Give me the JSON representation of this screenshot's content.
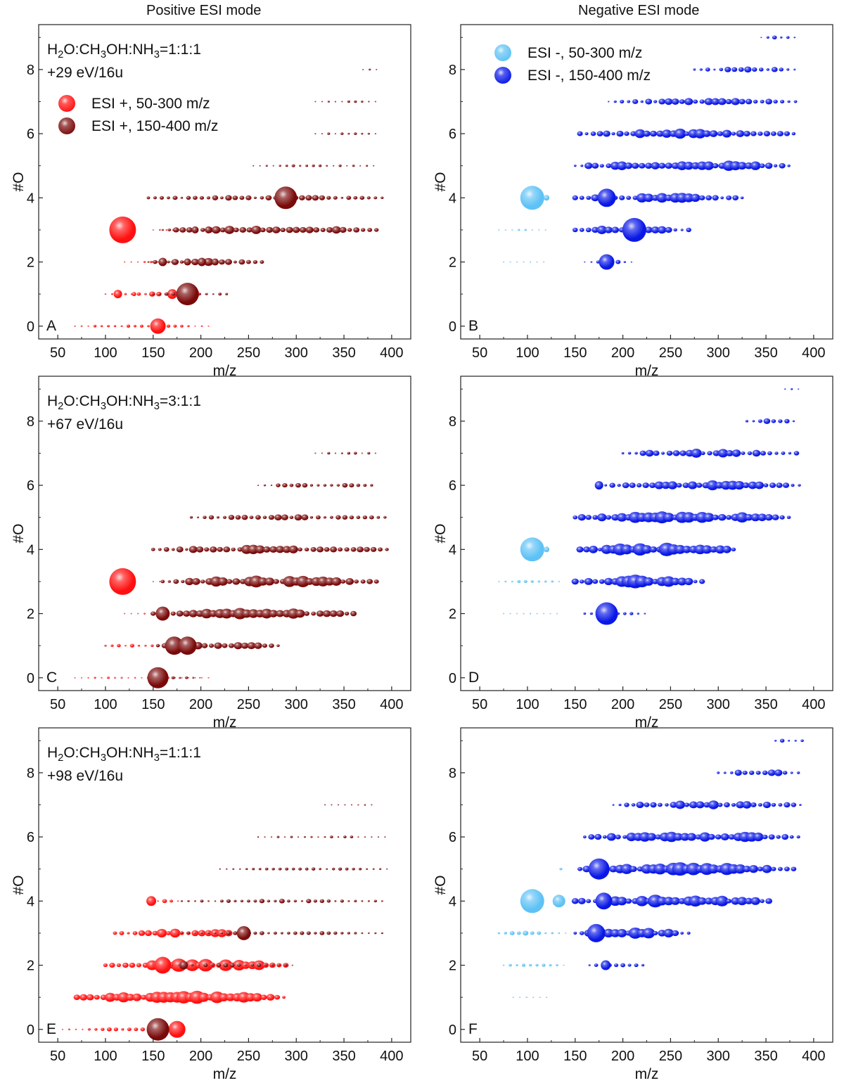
{
  "page": {
    "column_titles": [
      "Positive ESI mode",
      "Negative ESI mode"
    ]
  },
  "colors": {
    "esi_plus_low": "#ff1010",
    "esi_plus_high": "#7a0a0a",
    "esi_minus_low": "#5ec2f5",
    "esi_minus_high": "#0a18e6"
  },
  "chart_data": [
    {
      "panel": "A",
      "type": "scatter",
      "xlabel": "m/z",
      "ylabel": "#O",
      "xlim": [
        30,
        420
      ],
      "ylim": [
        -0.4,
        9.4
      ],
      "xticks": [
        50,
        100,
        150,
        200,
        250,
        300,
        350,
        400
      ],
      "yticks": [
        0,
        2,
        4,
        6,
        8
      ],
      "annotation": {
        "lines": [
          "H2O:CH3OH:NH3=1:1:1",
          "+29 eV/16u"
        ]
      },
      "legend": [
        {
          "label": "ESI +, 50-300 m/z",
          "color": "esi_plus_low"
        },
        {
          "label": "ESI +, 150-400 m/z",
          "color": "esi_plus_high"
        }
      ],
      "series": [
        {
          "name": "ESI +, 50-300 m/z",
          "color": "esi_plus_low",
          "bands": [
            {
              "o": 0,
              "start": 68,
              "end": 210,
              "step": 7,
              "base": 0.7
            },
            {
              "o": 1,
              "start": 100,
              "end": 210,
              "step": 7,
              "base": 1.0
            },
            {
              "o": 2,
              "start": 120,
              "end": 220,
              "step": 7,
              "base": 0.5
            },
            {
              "o": 3,
              "start": 150,
              "end": 180,
              "step": 7,
              "base": 0.5
            }
          ],
          "peaks": [
            {
              "x": 155,
              "y": 0,
              "r": 11
            },
            {
              "x": 113,
              "y": 1,
              "r": 6
            },
            {
              "x": 170,
              "y": 1,
              "r": 7
            },
            {
              "x": 190,
              "y": 1,
              "r": 11
            },
            {
              "x": 118,
              "y": 3,
              "r": 19
            },
            {
              "x": 130,
              "y": 1,
              "r": 3
            }
          ]
        },
        {
          "name": "ESI +, 150-400 m/z",
          "color": "esi_plus_high",
          "bands": [
            {
              "o": 1,
              "start": 150,
              "end": 230,
              "step": 7,
              "base": 1.0
            },
            {
              "o": 2,
              "start": 145,
              "end": 270,
              "step": 7,
              "base": 1.6
            },
            {
              "o": 3,
              "start": 160,
              "end": 390,
              "step": 7,
              "base": 1.8
            },
            {
              "o": 4,
              "start": 145,
              "end": 395,
              "step": 7,
              "base": 1.2
            },
            {
              "o": 5,
              "start": 255,
              "end": 385,
              "step": 7,
              "base": 0.6
            },
            {
              "o": 6,
              "start": 320,
              "end": 385,
              "step": 7,
              "base": 0.6
            },
            {
              "o": 7,
              "start": 320,
              "end": 385,
              "step": 7,
              "base": 0.5
            },
            {
              "o": 8,
              "start": 370,
              "end": 385,
              "step": 7,
              "base": 0.4
            }
          ],
          "peaks": [
            {
              "x": 186,
              "y": 1,
              "r": 16
            },
            {
              "x": 289,
              "y": 4,
              "r": 16
            },
            {
              "x": 160,
              "y": 2,
              "r": 6
            },
            {
              "x": 186,
              "y": 2,
              "r": 5
            },
            {
              "x": 201,
              "y": 2,
              "r": 6
            },
            {
              "x": 215,
              "y": 2,
              "r": 5
            },
            {
              "x": 194,
              "y": 3,
              "r": 5
            },
            {
              "x": 208,
              "y": 3,
              "r": 5
            }
          ]
        }
      ]
    },
    {
      "panel": "B",
      "type": "scatter",
      "xlabel": "m/z",
      "ylabel": "#O",
      "xlim": [
        30,
        420
      ],
      "ylim": [
        -0.4,
        9.4
      ],
      "xticks": [
        50,
        100,
        150,
        200,
        250,
        300,
        350,
        400
      ],
      "yticks": [
        0,
        2,
        4,
        6,
        8
      ],
      "legend": [
        {
          "label": "ESI -, 50-300 m/z",
          "color": "esi_minus_low"
        },
        {
          "label": "ESI -, 150-400 m/z",
          "color": "esi_minus_high"
        }
      ],
      "series": [
        {
          "name": "ESI -, 50-300 m/z",
          "color": "esi_minus_low",
          "bands": [
            {
              "o": 3,
              "start": 70,
              "end": 120,
              "step": 7,
              "base": 0.4
            },
            {
              "o": 2,
              "start": 75,
              "end": 120,
              "step": 7,
              "base": 0.3
            }
          ],
          "peaks": [
            {
              "x": 105,
              "y": 4,
              "r": 17
            },
            {
              "x": 120,
              "y": 4,
              "r": 4
            }
          ]
        },
        {
          "name": "ESI -, 150-400 m/z",
          "color": "esi_minus_high",
          "bands": [
            {
              "o": 2,
              "start": 160,
              "end": 210,
              "step": 7,
              "base": 1.0
            },
            {
              "o": 3,
              "start": 150,
              "end": 270,
              "step": 7,
              "base": 2.0
            },
            {
              "o": 4,
              "start": 150,
              "end": 330,
              "step": 7,
              "base": 2.0
            },
            {
              "o": 5,
              "start": 150,
              "end": 380,
              "step": 7,
              "base": 2.2
            },
            {
              "o": 6,
              "start": 155,
              "end": 385,
              "step": 7,
              "base": 2.0
            },
            {
              "o": 7,
              "start": 185,
              "end": 385,
              "step": 7,
              "base": 1.5
            },
            {
              "o": 8,
              "start": 275,
              "end": 385,
              "step": 7,
              "base": 1.2
            },
            {
              "o": 9,
              "start": 345,
              "end": 385,
              "step": 7,
              "base": 0.8
            }
          ],
          "peaks": [
            {
              "x": 183,
              "y": 2,
              "r": 11
            },
            {
              "x": 212,
              "y": 3,
              "r": 17
            },
            {
              "x": 183,
              "y": 4,
              "r": 13
            }
          ]
        }
      ]
    },
    {
      "panel": "C",
      "type": "scatter",
      "xlabel": "m/z",
      "ylabel": "#O",
      "xlim": [
        30,
        420
      ],
      "ylim": [
        -0.4,
        9.4
      ],
      "xticks": [
        50,
        100,
        150,
        200,
        250,
        300,
        350,
        400
      ],
      "yticks": [
        0,
        2,
        4,
        6,
        8
      ],
      "annotation": {
        "lines": [
          "H2O:CH3OH:NH3=3:1:1",
          "+67 eV/16u"
        ]
      },
      "series": [
        {
          "name": "ESI +, 50-300 m/z",
          "color": "esi_plus_low",
          "bands": [
            {
              "o": 0,
              "start": 68,
              "end": 210,
              "step": 7,
              "base": 0.5
            },
            {
              "o": 1,
              "start": 100,
              "end": 160,
              "step": 7,
              "base": 0.8
            },
            {
              "o": 2,
              "start": 120,
              "end": 150,
              "step": 7,
              "base": 0.4
            },
            {
              "o": 3,
              "start": 150,
              "end": 160,
              "step": 7,
              "base": 0.5
            }
          ],
          "peaks": [
            {
              "x": 118,
              "y": 3,
              "r": 19
            }
          ]
        },
        {
          "name": "ESI +, 150-400 m/z",
          "color": "esi_plus_high",
          "bands": [
            {
              "o": 0,
              "start": 150,
              "end": 200,
              "step": 7,
              "base": 0.8
            },
            {
              "o": 1,
              "start": 155,
              "end": 285,
              "step": 7,
              "base": 1.8
            },
            {
              "o": 2,
              "start": 150,
              "end": 365,
              "step": 7,
              "base": 2.3
            },
            {
              "o": 3,
              "start": 160,
              "end": 385,
              "step": 7,
              "base": 2.3
            },
            {
              "o": 4,
              "start": 150,
              "end": 395,
              "step": 7,
              "base": 1.8
            },
            {
              "o": 5,
              "start": 190,
              "end": 395,
              "step": 7,
              "base": 1.3
            },
            {
              "o": 6,
              "start": 260,
              "end": 385,
              "step": 7,
              "base": 1.0
            },
            {
              "o": 7,
              "start": 320,
              "end": 385,
              "step": 7,
              "base": 0.7
            }
          ],
          "peaks": [
            {
              "x": 155,
              "y": 0,
              "r": 15
            },
            {
              "x": 172,
              "y": 1,
              "r": 13
            },
            {
              "x": 186,
              "y": 1,
              "r": 13
            },
            {
              "x": 160,
              "y": 2,
              "r": 10
            }
          ]
        }
      ]
    },
    {
      "panel": "D",
      "type": "scatter",
      "xlabel": "m/z",
      "ylabel": "#O",
      "xlim": [
        30,
        420
      ],
      "ylim": [
        -0.4,
        9.4
      ],
      "xticks": [
        50,
        100,
        150,
        200,
        250,
        300,
        350,
        400
      ],
      "yticks": [
        0,
        2,
        4,
        6,
        8
      ],
      "series": [
        {
          "name": "ESI -, 50-300 m/z",
          "color": "esi_minus_low",
          "bands": [
            {
              "o": 3,
              "start": 70,
              "end": 135,
              "step": 7,
              "base": 0.6
            },
            {
              "o": 2,
              "start": 75,
              "end": 135,
              "step": 7,
              "base": 0.3
            }
          ],
          "peaks": [
            {
              "x": 105,
              "y": 4,
              "r": 17
            },
            {
              "x": 120,
              "y": 4,
              "r": 4
            }
          ]
        },
        {
          "name": "ESI -, 150-400 m/z",
          "color": "esi_minus_high",
          "bands": [
            {
              "o": 2,
              "start": 160,
              "end": 225,
              "step": 7,
              "base": 1.0
            },
            {
              "o": 3,
              "start": 150,
              "end": 285,
              "step": 7,
              "base": 2.6
            },
            {
              "o": 4,
              "start": 155,
              "end": 320,
              "step": 7,
              "base": 2.6
            },
            {
              "o": 5,
              "start": 150,
              "end": 380,
              "step": 7,
              "base": 2.4
            },
            {
              "o": 6,
              "start": 175,
              "end": 385,
              "step": 7,
              "base": 2.0
            },
            {
              "o": 7,
              "start": 200,
              "end": 385,
              "step": 7,
              "base": 1.8
            },
            {
              "o": 8,
              "start": 330,
              "end": 385,
              "step": 7,
              "base": 1.2
            },
            {
              "o": 9,
              "start": 370,
              "end": 385,
              "step": 7,
              "base": 0.6
            }
          ],
          "peaks": [
            {
              "x": 183,
              "y": 2,
              "r": 16
            },
            {
              "x": 175,
              "y": 6,
              "r": 6
            }
          ]
        }
      ]
    },
    {
      "panel": "E",
      "type": "scatter",
      "xlabel": "m/z",
      "ylabel": "#O",
      "xlim": [
        30,
        420
      ],
      "ylim": [
        -0.4,
        9.4
      ],
      "xticks": [
        50,
        100,
        150,
        200,
        250,
        300,
        350,
        400
      ],
      "yticks": [
        0,
        2,
        4,
        6,
        8
      ],
      "annotation": {
        "lines": [
          "H2O:CH3OH:NH3=1:1:1",
          "+98 eV/16u"
        ]
      },
      "series": [
        {
          "name": "ESI +, 50-300 m/z",
          "color": "esi_plus_low",
          "bands": [
            {
              "o": 0,
              "start": 55,
              "end": 185,
              "step": 7,
              "base": 0.9
            },
            {
              "o": 1,
              "start": 70,
              "end": 290,
              "step": 7,
              "base": 2.6
            },
            {
              "o": 2,
              "start": 100,
              "end": 290,
              "step": 7,
              "base": 2.6
            },
            {
              "o": 3,
              "start": 110,
              "end": 260,
              "step": 7,
              "base": 1.8
            },
            {
              "o": 4,
              "start": 148,
              "end": 180,
              "step": 7,
              "base": 0.8
            }
          ],
          "peaks": [
            {
              "x": 148,
              "y": 4,
              "r": 7
            },
            {
              "x": 160,
              "y": 2,
              "r": 12
            },
            {
              "x": 175,
              "y": 0,
              "r": 12
            }
          ]
        },
        {
          "name": "ESI +, 150-400 m/z",
          "color": "esi_plus_high",
          "bands": [
            {
              "o": 2,
              "start": 170,
              "end": 300,
              "step": 7,
              "base": 0.8
            },
            {
              "o": 3,
              "start": 180,
              "end": 390,
              "step": 7,
              "base": 0.9
            },
            {
              "o": 4,
              "start": 180,
              "end": 395,
              "step": 7,
              "base": 0.9
            },
            {
              "o": 5,
              "start": 220,
              "end": 395,
              "step": 7,
              "base": 0.7
            },
            {
              "o": 6,
              "start": 260,
              "end": 395,
              "step": 7,
              "base": 0.6
            },
            {
              "o": 7,
              "start": 330,
              "end": 385,
              "step": 7,
              "base": 0.4
            }
          ],
          "peaks": [
            {
              "x": 155,
              "y": 0,
              "r": 16
            },
            {
              "x": 245,
              "y": 3,
              "r": 10
            },
            {
              "x": 182,
              "y": 2,
              "r": 6
            }
          ]
        }
      ]
    },
    {
      "panel": "F",
      "type": "scatter",
      "xlabel": "m/z",
      "ylabel": "#O",
      "xlim": [
        30,
        420
      ],
      "ylim": [
        -0.4,
        9.4
      ],
      "xticks": [
        50,
        100,
        150,
        200,
        250,
        300,
        350,
        400
      ],
      "yticks": [
        0,
        2,
        4,
        6,
        8
      ],
      "series": [
        {
          "name": "ESI -, 50-300 m/z",
          "color": "esi_minus_low",
          "bands": [
            {
              "o": 1,
              "start": 85,
              "end": 125,
              "step": 7,
              "base": 0.3
            },
            {
              "o": 2,
              "start": 75,
              "end": 140,
              "step": 7,
              "base": 0.8
            },
            {
              "o": 3,
              "start": 70,
              "end": 140,
              "step": 7,
              "base": 1.0
            },
            {
              "o": 5,
              "start": 135,
              "end": 140,
              "step": 7,
              "base": 1.5
            }
          ],
          "peaks": [
            {
              "x": 105,
              "y": 4,
              "r": 17
            },
            {
              "x": 133,
              "y": 4,
              "r": 9
            }
          ]
        },
        {
          "name": "ESI -, 150-400 m/z",
          "color": "esi_minus_high",
          "bands": [
            {
              "o": 2,
              "start": 165,
              "end": 225,
              "step": 7,
              "base": 1.0
            },
            {
              "o": 3,
              "start": 150,
              "end": 270,
              "step": 7,
              "base": 2.2
            },
            {
              "o": 4,
              "start": 150,
              "end": 355,
              "step": 7,
              "base": 2.6
            },
            {
              "o": 5,
              "start": 155,
              "end": 380,
              "step": 7,
              "base": 2.6
            },
            {
              "o": 6,
              "start": 160,
              "end": 390,
              "step": 7,
              "base": 2.3
            },
            {
              "o": 7,
              "start": 190,
              "end": 390,
              "step": 7,
              "base": 1.8
            },
            {
              "o": 8,
              "start": 300,
              "end": 390,
              "step": 7,
              "base": 1.5
            },
            {
              "o": 9,
              "start": 360,
              "end": 390,
              "step": 7,
              "base": 0.9
            }
          ],
          "peaks": [
            {
              "x": 172,
              "y": 3,
              "r": 13
            },
            {
              "x": 175,
              "y": 5,
              "r": 15
            },
            {
              "x": 180,
              "y": 4,
              "r": 12
            },
            {
              "x": 182,
              "y": 2,
              "r": 7
            }
          ]
        }
      ]
    }
  ]
}
